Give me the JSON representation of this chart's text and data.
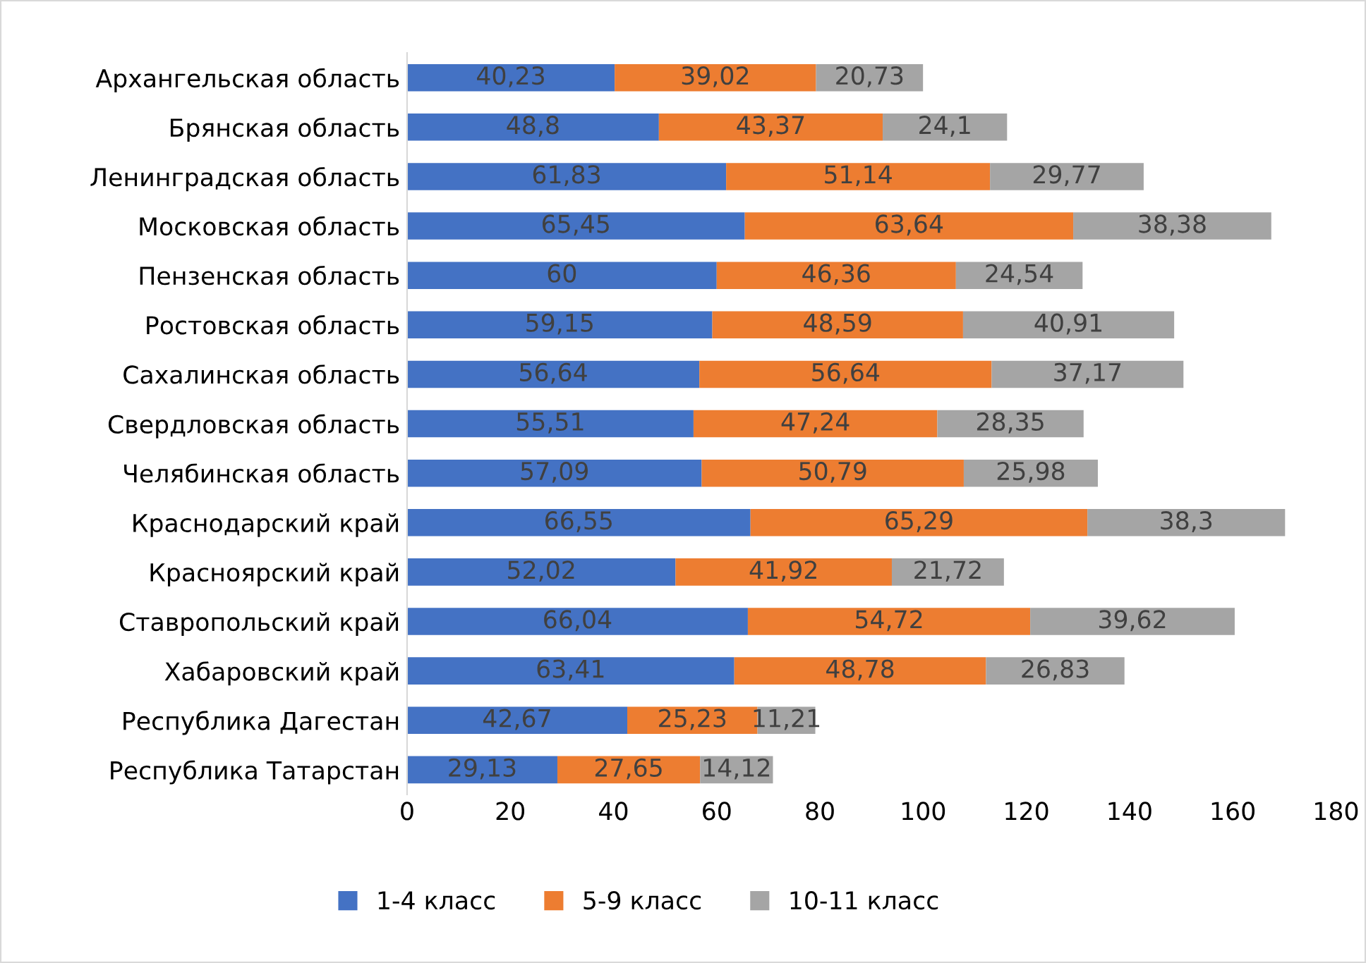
{
  "chart_data": {
    "type": "bar",
    "orientation": "horizontal",
    "stacked": true,
    "categories": [
      "Архангельская область",
      "Брянская область",
      "Ленинградская область",
      "Московская область",
      "Пензенская область",
      "Ростовская область",
      "Сахалинская область",
      "Свердловская область",
      "Челябинская область",
      "Краснодарский край",
      "Красноярский край",
      "Ставропольский край",
      "Хабаровский край",
      "Республика Дагестан",
      "Республика Татарстан"
    ],
    "series": [
      {
        "name": "1-4 класс",
        "color": "#4472c4",
        "values": [
          40.23,
          48.8,
          61.83,
          65.45,
          60,
          59.15,
          56.64,
          55.51,
          57.09,
          66.55,
          52.02,
          66.04,
          63.41,
          42.67,
          29.13
        ],
        "value_labels": [
          "40,23",
          "48,8",
          "61,83",
          "65,45",
          "60",
          "59,15",
          "56,64",
          "55,51",
          "57,09",
          "66,55",
          "52,02",
          "66,04",
          "63,41",
          "42,67",
          "29,13"
        ]
      },
      {
        "name": "5-9 класс",
        "color": "#ed7d31",
        "values": [
          39.02,
          43.37,
          51.14,
          63.64,
          46.36,
          48.59,
          56.64,
          47.24,
          50.79,
          65.29,
          41.92,
          54.72,
          48.78,
          25.23,
          27.65
        ],
        "value_labels": [
          "39,02",
          "43,37",
          "51,14",
          "63,64",
          "46,36",
          "48,59",
          "56,64",
          "47,24",
          "50,79",
          "65,29",
          "41,92",
          "54,72",
          "48,78",
          "25,23",
          "27,65"
        ]
      },
      {
        "name": "10-11 класс",
        "color": "#a5a5a5",
        "values": [
          20.73,
          24.1,
          29.77,
          38.38,
          24.54,
          40.91,
          37.17,
          28.35,
          25.98,
          38.3,
          21.72,
          39.62,
          26.83,
          11.21,
          14.12
        ],
        "value_labels": [
          "20,73",
          "24,1",
          "29,77",
          "38,38",
          "24,54",
          "40,91",
          "37,17",
          "28,35",
          "25,98",
          "38,3",
          "21,72",
          "39,62",
          "26,83",
          "11,21",
          "14,12"
        ]
      }
    ],
    "xlim": [
      0,
      180
    ],
    "xticks": [
      0,
      20,
      40,
      60,
      80,
      100,
      120,
      140,
      160,
      180
    ],
    "grid": false,
    "legend": "bottom"
  }
}
